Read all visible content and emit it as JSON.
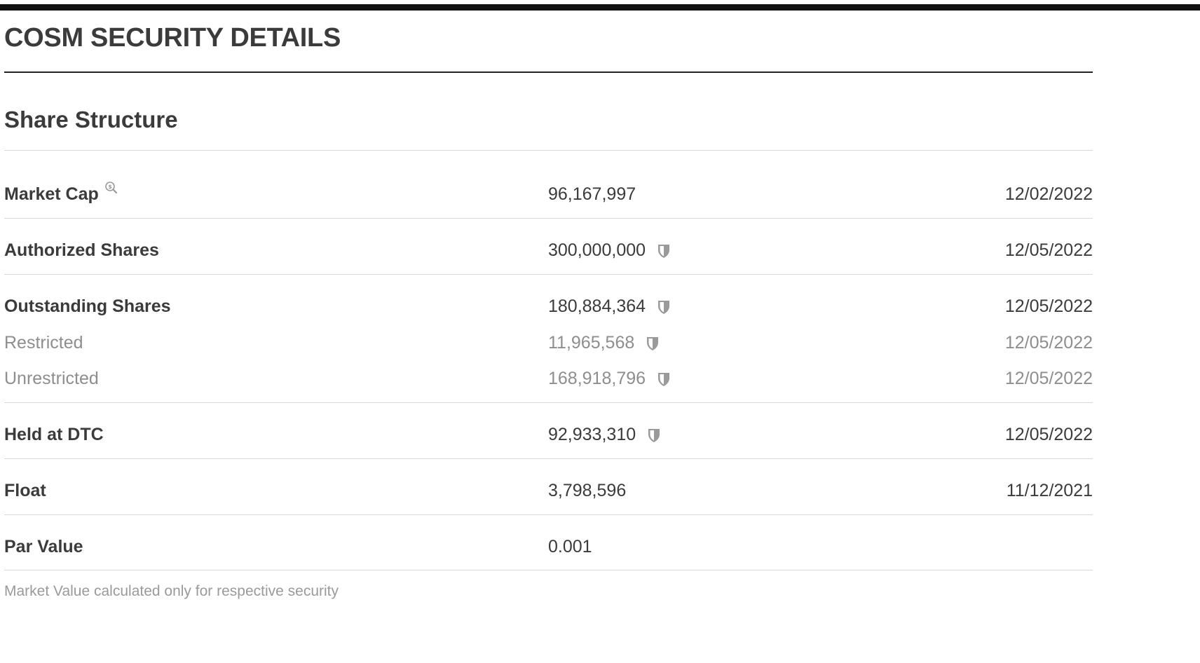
{
  "page": {
    "title": "COSM SECURITY DETAILS"
  },
  "share_structure": {
    "title": "Share Structure",
    "rows": [
      {
        "label": "Market Cap",
        "value": "96,167,997",
        "date": "12/02/2022",
        "icon": "search-dollar-icon"
      },
      {
        "label": "Authorized Shares",
        "value": "300,000,000",
        "date": "12/05/2022",
        "icon": "shield-icon"
      },
      {
        "label": "Outstanding Shares",
        "value": "180,884,364",
        "date": "12/05/2022",
        "icon": "shield-icon"
      },
      {
        "label": "Restricted",
        "value": "11,965,568",
        "date": "12/05/2022",
        "icon": "shield-icon"
      },
      {
        "label": "Unrestricted",
        "value": "168,918,796",
        "date": "12/05/2022",
        "icon": "shield-icon"
      },
      {
        "label": "Held at DTC",
        "value": "92,933,310",
        "date": "12/05/2022",
        "icon": "shield-icon"
      },
      {
        "label": "Float",
        "value": "3,798,596",
        "date": "11/12/2021"
      },
      {
        "label": "Par Value",
        "value": "0.001",
        "date": ""
      }
    ],
    "footnote": "Market Value calculated only for respective security"
  },
  "colors": {
    "primary_text": "#3b3b3b",
    "secondary_text": "#8e8e8e",
    "rule": "#d8d8d8",
    "top_bar": "#111111",
    "icon_gray": "#9a9a9a"
  }
}
